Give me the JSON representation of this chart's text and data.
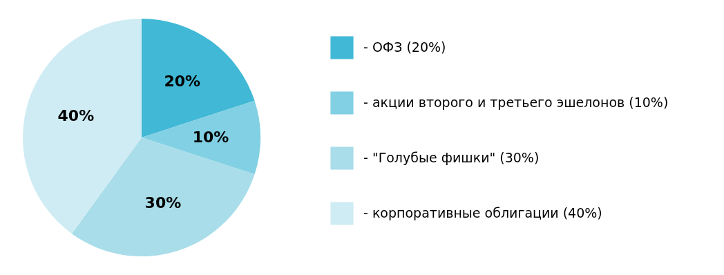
{
  "chart_data": {
    "type": "pie",
    "categories": [
      "- ОФЗ (20%)",
      "- акции второго и третьего эшелонов (10%)",
      "- \"Голубые фишки\" (30%)",
      "- корпоративные облигации (40%)"
    ],
    "values": [
      20,
      10,
      30,
      40
    ],
    "colors": [
      "#41b8d6",
      "#82d0e3",
      "#a8dde9",
      "#cfecf4"
    ],
    "value_labels": [
      "20%",
      "10%",
      "30%",
      "40%"
    ],
    "legend": "right"
  }
}
